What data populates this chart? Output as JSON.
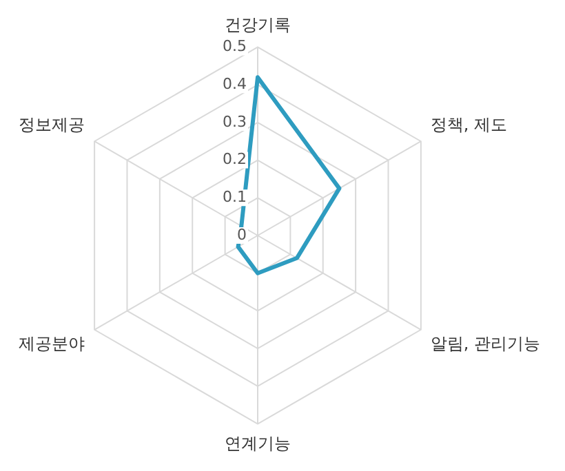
{
  "chart_data": {
    "type": "radar",
    "categories": [
      "건강기록",
      "정책, 제도",
      "알림, 관리기능",
      "연계기능",
      "제공분야",
      "정보제공"
    ],
    "series": [
      {
        "color": "#2e9cc0",
        "values": [
          0.42,
          0.25,
          0.12,
          0.1,
          0.06,
          0.05
        ]
      }
    ],
    "ylim": [
      0,
      0.5
    ],
    "yticks": [
      0,
      0.1,
      0.2,
      0.3,
      0.4,
      0.5
    ],
    "grid": true,
    "marker": "none",
    "line_style": "solid"
  }
}
